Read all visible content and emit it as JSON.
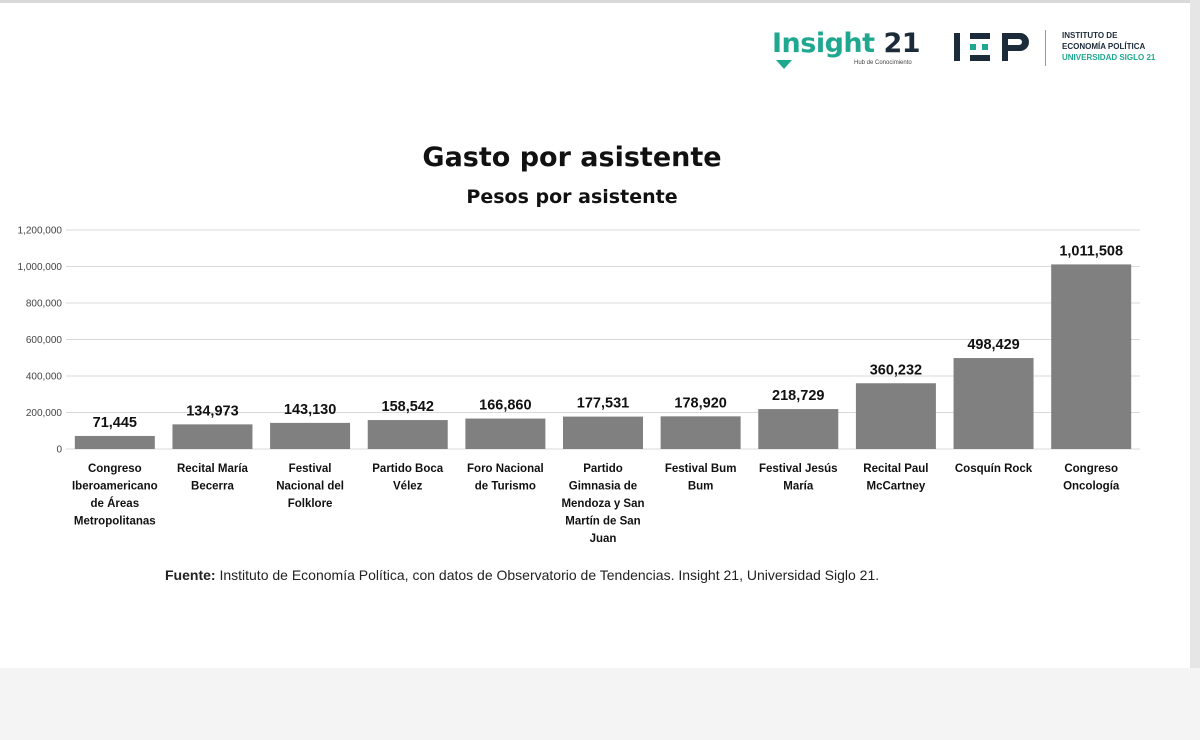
{
  "logos": {
    "insight": {
      "word_1": "Insight",
      "word_2": "21",
      "tagline": "Hub de Conocimiento"
    },
    "iep": {
      "mark": "IEP",
      "line1": "INSTITUTO DE",
      "line2": "ECONOMÍA POLÍTICA",
      "line3": "UNIVERSIDAD SIGLO 21"
    }
  },
  "colors": {
    "bar": "#808080",
    "grid": "#d9d9d9",
    "brand_green": "#1fa88f",
    "brand_dark": "#1c2b3a"
  },
  "chart_data": {
    "type": "bar",
    "title": "Gasto por asistente",
    "subtitle": "Pesos por asistente",
    "xlabel": "",
    "ylabel": "",
    "ylim": [
      0,
      1200000
    ],
    "yticks": [
      0,
      200000,
      400000,
      600000,
      800000,
      1000000,
      1200000
    ],
    "ytick_labels": [
      "0",
      "200,000",
      "400,000",
      "600,000",
      "800,000",
      "1,000,000",
      "1,200,000"
    ],
    "grid": true,
    "legend": "none",
    "categories": [
      [
        "Congreso",
        "Iberoamericano",
        "de Áreas",
        "Metropolitanas"
      ],
      [
        "Recital María",
        "Becerra"
      ],
      [
        "Festival",
        "Nacional del",
        "Folklore"
      ],
      [
        "Partido Boca",
        "Vélez"
      ],
      [
        "Foro Nacional",
        "de Turismo"
      ],
      [
        "Partido",
        "Gimnasia de",
        "Mendoza y San",
        "Martín de San",
        "Juan"
      ],
      [
        "Festival Bum",
        "Bum"
      ],
      [
        "Festival Jesús",
        "María"
      ],
      [
        "Recital Paul",
        "McCartney"
      ],
      [
        "Cosquín Rock"
      ],
      [
        "Congreso",
        "Oncología"
      ]
    ],
    "values": [
      71445,
      134973,
      143130,
      158542,
      166860,
      177531,
      178920,
      218729,
      360232,
      498429,
      1011508
    ],
    "data_labels": [
      "71,445",
      "134,973",
      "143,130",
      "158,542",
      "166,860",
      "177,531",
      "178,920",
      "218,729",
      "360,232",
      "498,429",
      "1,011,508"
    ]
  },
  "source": {
    "label": "Fuente:",
    "text": " Instituto de Economía Política, con datos de Observatorio de Tendencias. Insight 21, Universidad Siglo 21."
  }
}
